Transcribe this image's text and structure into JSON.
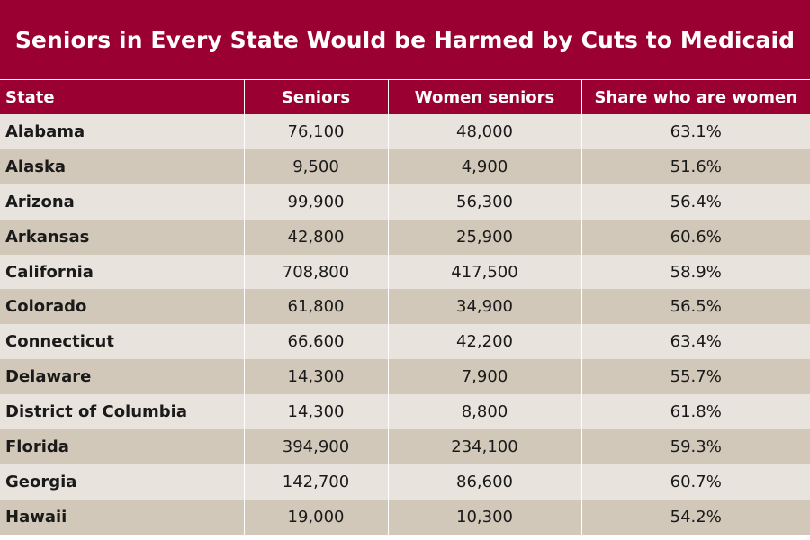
{
  "title": "Seniors in Every State Would be Harmed by Cuts to Medicaid",
  "colors": {
    "header_bg": "#9b0032",
    "row_light": "#e9e3dd",
    "row_dark": "#d2c8b9"
  },
  "table": {
    "headers": [
      "State",
      "Seniors",
      "Women seniors",
      "Share who are women"
    ],
    "rows": [
      [
        "Alabama",
        "76,100",
        "48,000",
        "63.1%"
      ],
      [
        "Alaska",
        "9,500",
        "4,900",
        "51.6%"
      ],
      [
        "Arizona",
        "99,900",
        "56,300",
        "56.4%"
      ],
      [
        "Arkansas",
        "42,800",
        "25,900",
        "60.6%"
      ],
      [
        "California",
        "708,800",
        "417,500",
        "58.9%"
      ],
      [
        "Colorado",
        "61,800",
        "34,900",
        "56.5%"
      ],
      [
        "Connecticut",
        "66,600",
        "42,200",
        "63.4%"
      ],
      [
        "Delaware",
        "14,300",
        "7,900",
        "55.7%"
      ],
      [
        "District of Columbia",
        "14,300",
        "8,800",
        "61.8%"
      ],
      [
        "Florida",
        "394,900",
        "234,100",
        "59.3%"
      ],
      [
        "Georgia",
        "142,700",
        "86,600",
        "60.7%"
      ],
      [
        "Hawaii",
        "19,000",
        "10,300",
        "54.2%"
      ]
    ]
  }
}
